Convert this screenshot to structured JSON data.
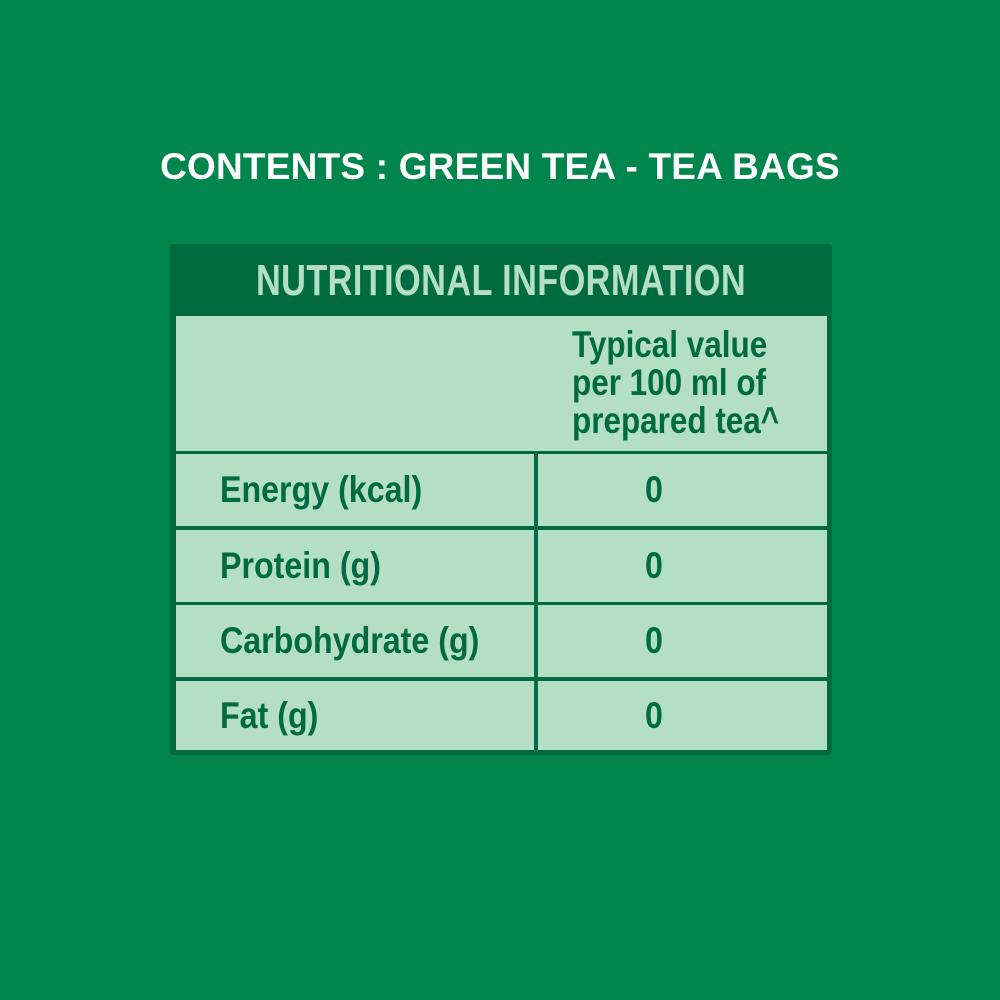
{
  "contents_title": "CONTENTS : GREEN TEA - TEA BAGS",
  "table": {
    "title": "NUTRITIONAL INFORMATION",
    "column_header": [
      "Typical value",
      "per 100 ml of",
      "prepared tea^"
    ],
    "rows": [
      {
        "label": "Energy (kcal)",
        "value": "0"
      },
      {
        "label": "Protein (g)",
        "value": "0"
      },
      {
        "label": "Carbohydrate (g)",
        "value": "0"
      },
      {
        "label": "Fat (g)",
        "value": "0"
      }
    ]
  },
  "colors": {
    "background": "#00854c",
    "dark_green": "#006b40",
    "light_green": "#b5dfc5",
    "title_text": "#ffffff"
  }
}
